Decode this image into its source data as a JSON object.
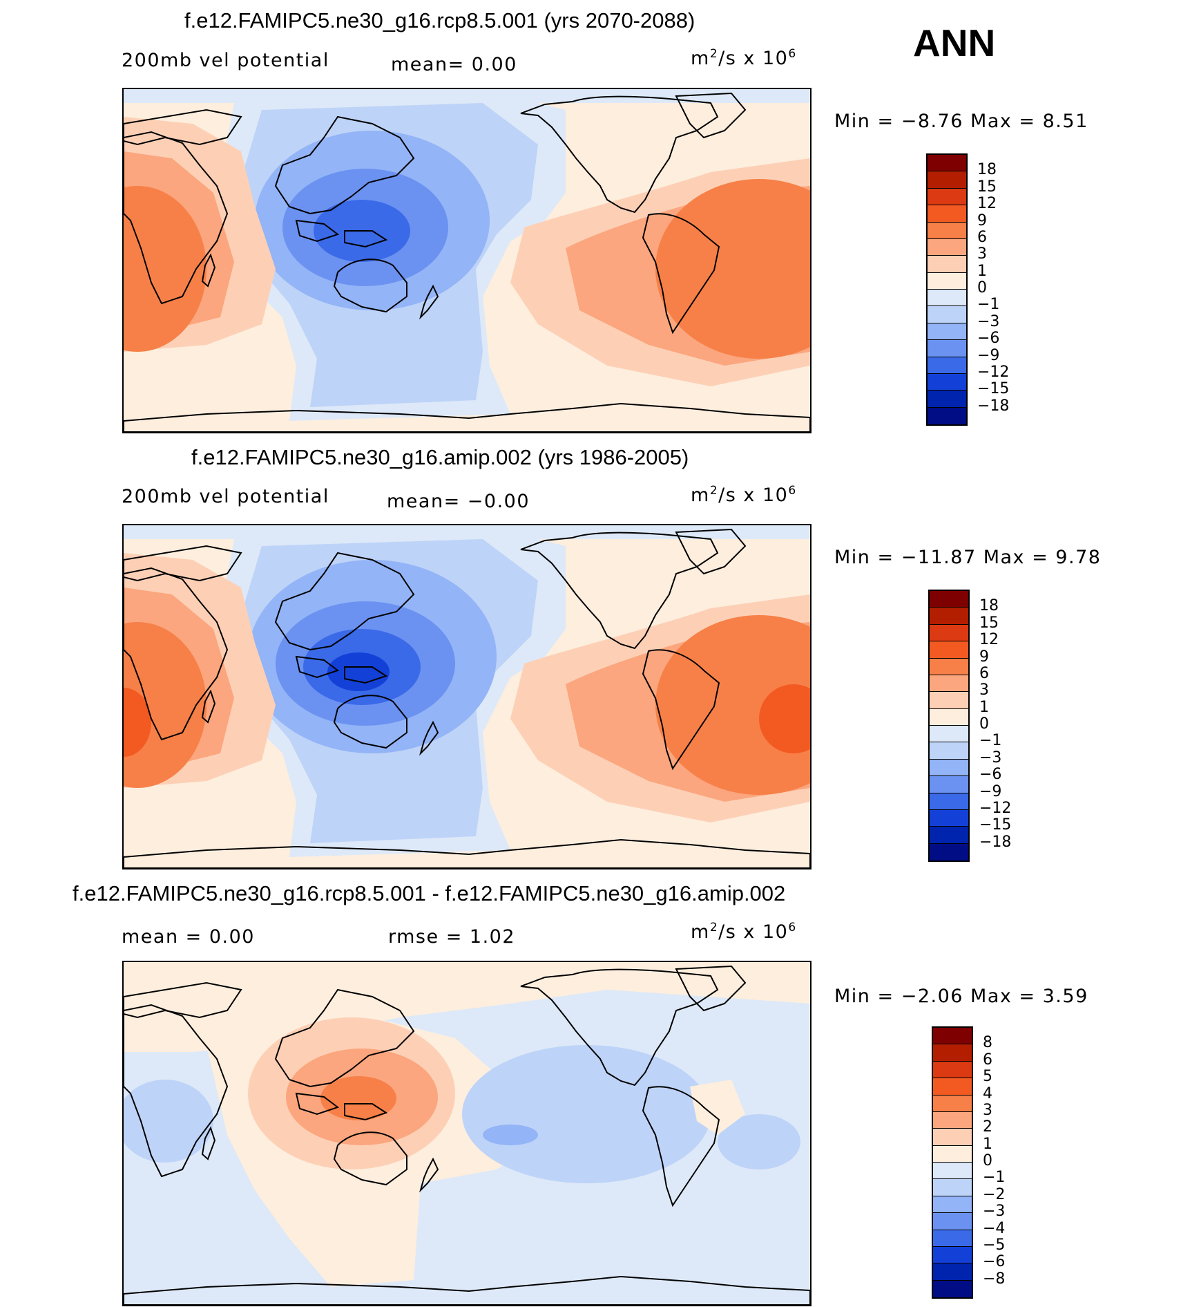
{
  "season": "ANN",
  "panels": [
    {
      "title": "f.e12.FAMIPC5.ne30_g16.rcp8.5.001 (yrs 2070-2088)",
      "variable": "200mb vel potential",
      "mean": "mean=    0.00",
      "units": "m",
      "units_sup": "2",
      "units_tail": "/s x 10",
      "units_exp": "6",
      "minmax": "Min =   −8.76 Max =    8.51",
      "colorbar": {
        "labels": [
          "18",
          "15",
          "12",
          "9",
          "6",
          "3",
          "1",
          "0",
          "−1",
          "−3",
          "−6",
          "−9",
          "−12",
          "−15",
          "−18"
        ],
        "colors": [
          "#7f0000",
          "#b31e00",
          "#dc3a12",
          "#f25a22",
          "#f78048",
          "#fba67e",
          "#fdd0b6",
          "#fdeede",
          "#dde9f8",
          "#bed3f8",
          "#93b4f6",
          "#6b92f1",
          "#3a6ae8",
          "#1341d8",
          "#0024ad",
          "#000d85"
        ]
      },
      "map": {
        "kind": "mean",
        "variant": "A"
      }
    },
    {
      "title": "f.e12.FAMIPC5.ne30_g16.amip.002 (yrs 1986-2005)",
      "variable": "200mb vel potential",
      "mean": "mean=  −0.00",
      "units": "m",
      "units_sup": "2",
      "units_tail": "/s x 10",
      "units_exp": "6",
      "minmax": "Min = −11.87 Max =    9.78",
      "colorbar": {
        "labels": [
          "18",
          "15",
          "12",
          "9",
          "6",
          "3",
          "1",
          "0",
          "−1",
          "−3",
          "−6",
          "−9",
          "−12",
          "−15",
          "−18"
        ],
        "colors": [
          "#7f0000",
          "#b31e00",
          "#dc3a12",
          "#f25a22",
          "#f78048",
          "#fba67e",
          "#fdd0b6",
          "#fdeede",
          "#dde9f8",
          "#bed3f8",
          "#93b4f6",
          "#6b92f1",
          "#3a6ae8",
          "#1341d8",
          "#0024ad",
          "#000d85"
        ]
      },
      "map": {
        "kind": "mean",
        "variant": "B"
      }
    },
    {
      "title": "f.e12.FAMIPC5.ne30_g16.rcp8.5.001 - f.e12.FAMIPC5.ne30_g16.amip.002",
      "variable": "mean =    0.00",
      "mean": "rmse =    1.02",
      "units": "m",
      "units_sup": "2",
      "units_tail": "/s x 10",
      "units_exp": "6",
      "minmax": "Min =   −2.06 Max =    3.59",
      "colorbar": {
        "labels": [
          "8",
          "6",
          "5",
          "4",
          "3",
          "2",
          "1",
          "0",
          "−1",
          "−2",
          "−3",
          "−4",
          "−5",
          "−6",
          "−8"
        ],
        "colors": [
          "#7f0000",
          "#b31e00",
          "#dc3a12",
          "#f25a22",
          "#f78048",
          "#fba67e",
          "#fdd0b6",
          "#fdeede",
          "#dde9f8",
          "#bed3f8",
          "#93b4f6",
          "#6b92f1",
          "#3a6ae8",
          "#1341d8",
          "#0024ad",
          "#000d85"
        ]
      },
      "map": {
        "kind": "diff",
        "variant": "C"
      }
    }
  ]
}
